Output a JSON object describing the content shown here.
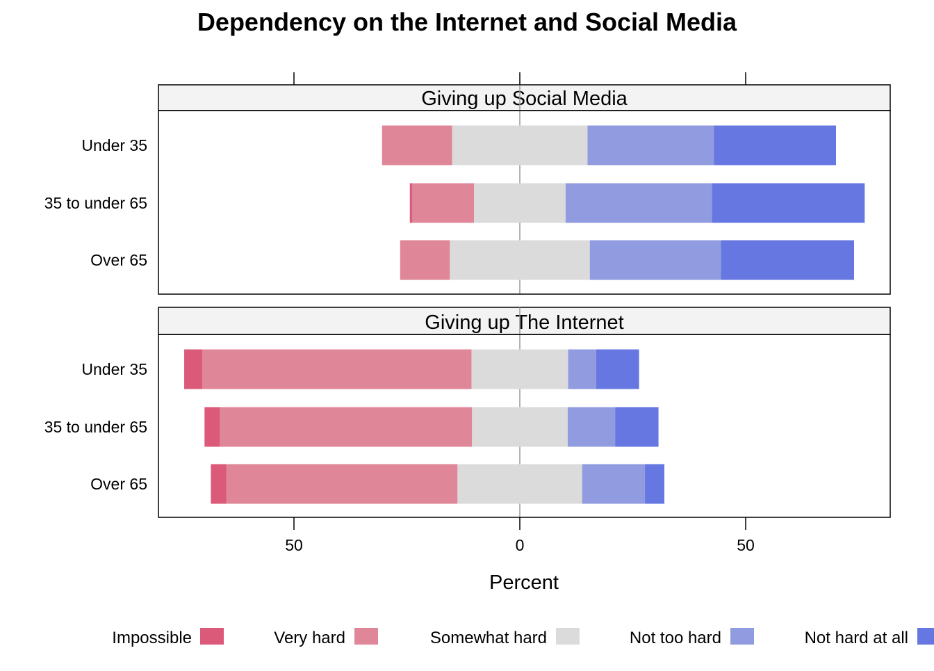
{
  "chart_data": {
    "type": "diverging-stacked-bar",
    "title": "Dependency on the Internet and Social Media",
    "xlabel": "Percent",
    "xlim": [
      -80,
      82
    ],
    "xticks": [
      {
        "value": -50,
        "label": "50"
      },
      {
        "value": 0,
        "label": "0"
      },
      {
        "value": 50,
        "label": "50"
      }
    ],
    "zero_line_color": "#999999",
    "legend_position": "bottom",
    "levels": [
      {
        "name": "Impossible",
        "color": "#DB5A7A",
        "side": "negative"
      },
      {
        "name": "Very hard",
        "color": "#E08699",
        "side": "negative"
      },
      {
        "name": "Somewhat hard",
        "color": "#DBDBDB",
        "side": "split"
      },
      {
        "name": "Not too hard",
        "color": "#919BDF",
        "side": "positive"
      },
      {
        "name": "Not hard at all",
        "color": "#6777E1",
        "side": "positive"
      }
    ],
    "panels": [
      {
        "strip": "Giving up Social Media",
        "rows": [
          {
            "label": "Under 35",
            "values": [
              0,
              15.5,
              30,
              28,
              27
            ]
          },
          {
            "label": "35 to under 65",
            "values": [
              0.5,
              13.7,
              20.3,
              32.4,
              33.8
            ]
          },
          {
            "label": "Over 65",
            "values": [
              0,
              11,
              31,
              29,
              29.5
            ]
          }
        ]
      },
      {
        "strip": "Giving up The Internet",
        "rows": [
          {
            "label": "Under 35",
            "values": [
              4,
              59.6,
              21.4,
              6.2,
              9.5
            ]
          },
          {
            "label": "35 to under 65",
            "values": [
              3.4,
              55.8,
              21.2,
              10.5,
              9.6
            ]
          },
          {
            "label": "Over 65",
            "values": [
              3.4,
              51.2,
              27.6,
              13.9,
              4.3
            ]
          }
        ]
      }
    ]
  }
}
